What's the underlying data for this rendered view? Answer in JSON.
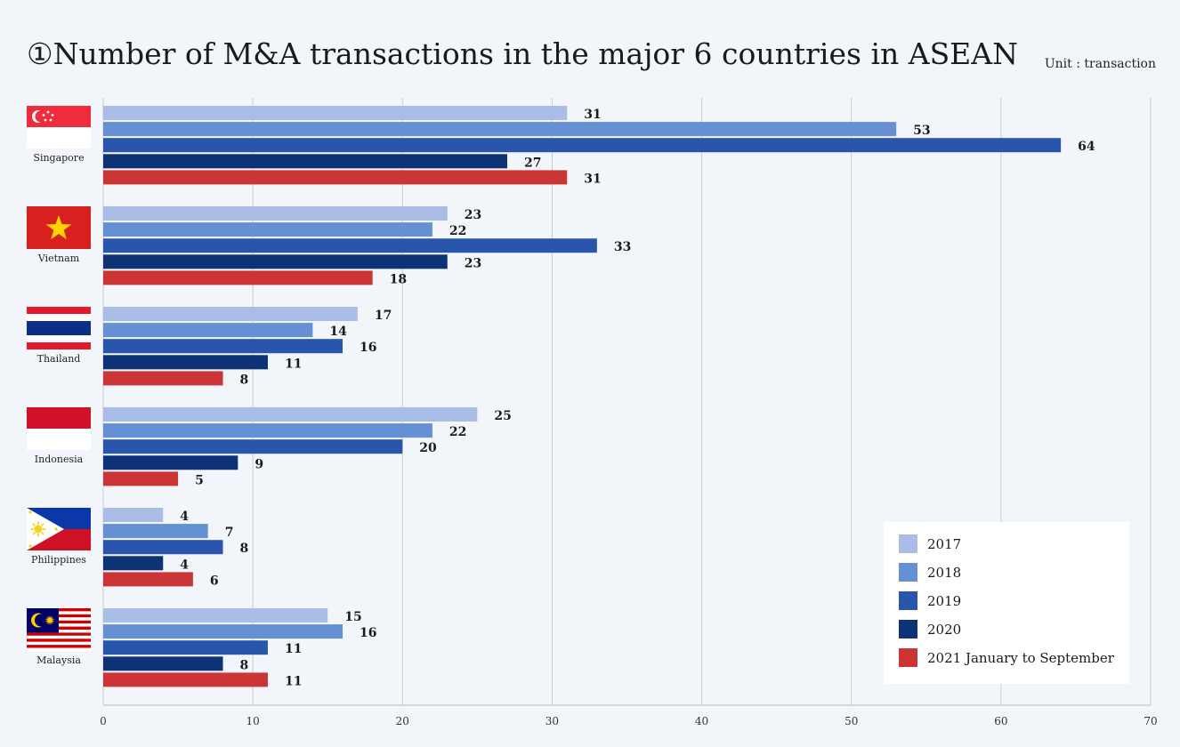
{
  "chart_data": {
    "type": "bar",
    "orientation": "horizontal",
    "title": "①Number of M&A transactions in the major 6 countries in ASEAN",
    "unit": "Unit : transaction",
    "categories": [
      "Singapore",
      "Vietnam",
      "Thailand",
      "Indonesia",
      "Philippines",
      "Malaysia"
    ],
    "series": [
      {
        "name": "2017",
        "color": "#a9bde6",
        "values": [
          31,
          23,
          17,
          25,
          4,
          15
        ]
      },
      {
        "name": "2018",
        "color": "#6690d4",
        "values": [
          53,
          22,
          14,
          22,
          7,
          16
        ]
      },
      {
        "name": "2019",
        "color": "#2a55ad",
        "values": [
          64,
          33,
          16,
          20,
          8,
          11
        ]
      },
      {
        "name": "2020",
        "color": "#0d3275",
        "values": [
          27,
          23,
          11,
          9,
          4,
          8
        ]
      },
      {
        "name": "2021 January to September",
        "color": "#cc3535",
        "values": [
          31,
          18,
          8,
          5,
          6,
          11
        ]
      }
    ],
    "xlim": [
      0,
      70
    ],
    "xticks": [
      0,
      10,
      20,
      30,
      40,
      50,
      60,
      70
    ],
    "grid": true,
    "legend_position": "bottom-right"
  },
  "flags": [
    "singapore-flag-icon",
    "vietnam-flag-icon",
    "thailand-flag-icon",
    "indonesia-flag-icon",
    "philippines-flag-icon",
    "malaysia-flag-icon"
  ]
}
